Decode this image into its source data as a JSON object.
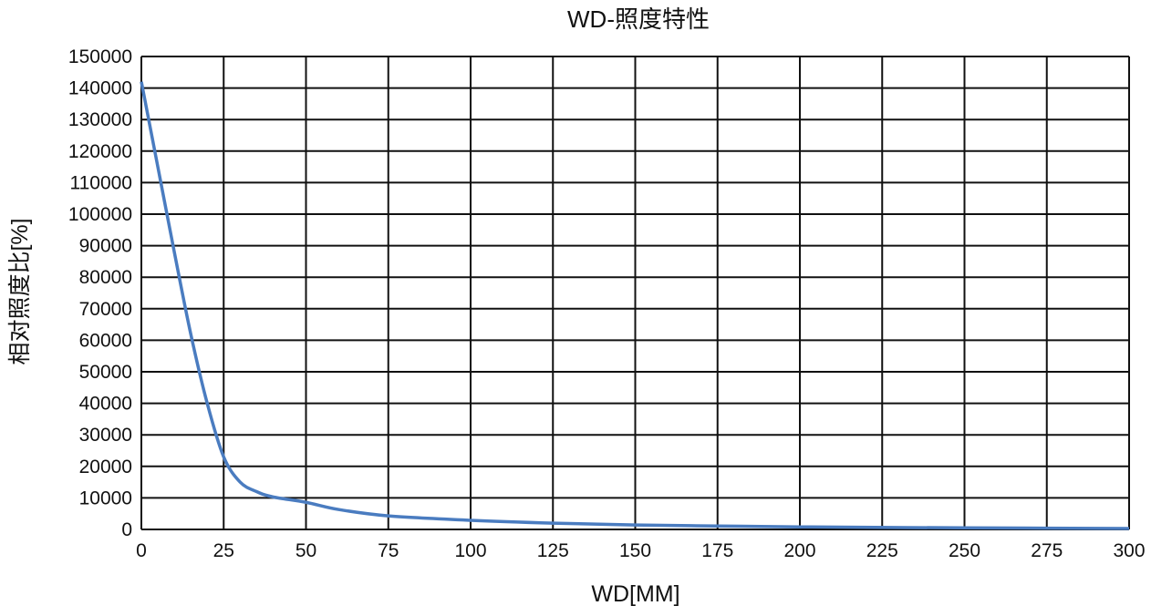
{
  "chart_data": {
    "type": "line",
    "title": "WD-照度特性",
    "xlabel": "WD[MM]",
    "ylabel": "相对照度比[%]",
    "xlim": [
      0,
      300
    ],
    "ylim": [
      0,
      150000
    ],
    "xticks": [
      0,
      25,
      50,
      75,
      100,
      125,
      150,
      175,
      200,
      225,
      250,
      275,
      300
    ],
    "yticks": [
      0,
      10000,
      20000,
      30000,
      40000,
      50000,
      60000,
      70000,
      80000,
      90000,
      100000,
      110000,
      120000,
      130000,
      140000,
      150000
    ],
    "grid": true,
    "line_color": "#4a7cc0",
    "series": [
      {
        "x": [
          0,
          5,
          10,
          15,
          20,
          25,
          30,
          35,
          40,
          50,
          60,
          75,
          100,
          125,
          150,
          175,
          200,
          250,
          300
        ],
        "y": [
          142000,
          115000,
          88000,
          62000,
          40000,
          23000,
          15000,
          12000,
          10300,
          8600,
          6300,
          4300,
          2900,
          2000,
          1400,
          1100,
          800,
          500,
          300
        ]
      }
    ]
  }
}
